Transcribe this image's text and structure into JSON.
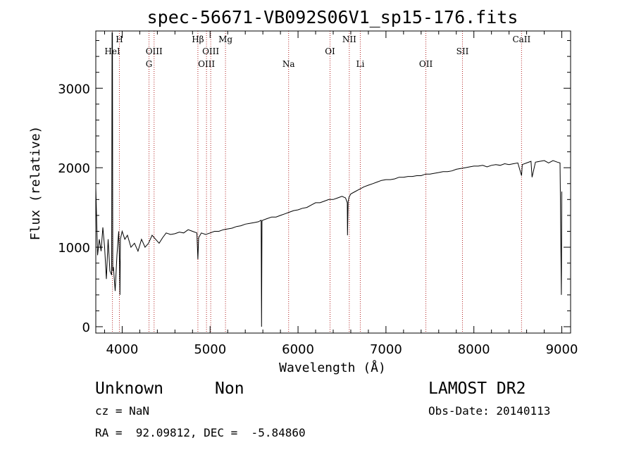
{
  "chart_data": {
    "type": "line",
    "title": "spec-56671-VB092S06V1_sp15-176.fits",
    "xlabel": "Wavelength (Å)",
    "ylabel": "Flux (relative)",
    "xlim": [
      3700,
      9100
    ],
    "ylim": [
      -80,
      3720
    ],
    "x_ticks": [
      4000,
      5000,
      6000,
      7000,
      8000,
      9000
    ],
    "y_ticks": [
      0,
      1000,
      2000,
      3000
    ],
    "grid": false,
    "series": [
      {
        "color": "#000000",
        "x": [
          3700,
          3720,
          3740,
          3760,
          3780,
          3800,
          3820,
          3840,
          3860,
          3880,
          3885,
          3889,
          3893,
          3900,
          3920,
          3940,
          3960,
          3970,
          3975,
          3980,
          4000,
          4030,
          4060,
          4100,
          4140,
          4180,
          4220,
          4260,
          4300,
          4340,
          4380,
          4420,
          4460,
          4500,
          4550,
          4600,
          4650,
          4700,
          4750,
          4800,
          4850,
          4861,
          4870,
          4900,
          4950,
          5000,
          5050,
          5100,
          5150,
          5200,
          5250,
          5300,
          5350,
          5400,
          5450,
          5500,
          5550,
          5580,
          5585,
          5590,
          5600,
          5650,
          5700,
          5750,
          5800,
          5850,
          5900,
          5950,
          6000,
          6050,
          6100,
          6150,
          6200,
          6250,
          6300,
          6350,
          6400,
          6450,
          6500,
          6540,
          6560,
          6563,
          6570,
          6580,
          6600,
          6650,
          6700,
          6750,
          6800,
          6850,
          6900,
          6950,
          7000,
          7050,
          7100,
          7150,
          7200,
          7250,
          7300,
          7350,
          7400,
          7450,
          7500,
          7550,
          7600,
          7650,
          7700,
          7750,
          7800,
          7850,
          7900,
          7950,
          8000,
          8050,
          8100,
          8150,
          8200,
          8250,
          8300,
          8350,
          8400,
          8450,
          8500,
          8542,
          8550,
          8600,
          8650,
          8662,
          8700,
          8750,
          8800,
          8850,
          8900,
          8950,
          8980,
          8995,
          9000
        ],
        "y": [
          1750,
          900,
          1100,
          950,
          1250,
          1000,
          600,
          1100,
          700,
          650,
          3700,
          3700,
          700,
          750,
          450,
          900,
          1200,
          800,
          400,
          1100,
          1200,
          1100,
          1150,
          1000,
          1050,
          950,
          1100,
          1000,
          1050,
          1150,
          1100,
          1050,
          1120,
          1180,
          1160,
          1170,
          1190,
          1180,
          1220,
          1200,
          1180,
          850,
          1120,
          1180,
          1160,
          1180,
          1200,
          1200,
          1220,
          1230,
          1240,
          1260,
          1270,
          1290,
          1300,
          1310,
          1320,
          1340,
          0,
          1330,
          1340,
          1360,
          1380,
          1380,
          1400,
          1420,
          1440,
          1460,
          1470,
          1490,
          1500,
          1530,
          1560,
          1560,
          1580,
          1600,
          1600,
          1620,
          1640,
          1620,
          1560,
          1150,
          1570,
          1630,
          1670,
          1700,
          1730,
          1760,
          1780,
          1800,
          1820,
          1840,
          1850,
          1850,
          1860,
          1880,
          1880,
          1890,
          1890,
          1900,
          1900,
          1920,
          1920,
          1930,
          1940,
          1950,
          1950,
          1960,
          1980,
          1990,
          2000,
          2010,
          2020,
          2020,
          2030,
          2010,
          2030,
          2040,
          2030,
          2050,
          2040,
          2050,
          2060,
          1900,
          2040,
          2060,
          2080,
          1880,
          2070,
          2080,
          2090,
          2060,
          2090,
          2070,
          2060,
          400,
          1700
        ]
      }
    ],
    "line_markers": [
      {
        "label": "HeI",
        "x": 3889,
        "row": 2
      },
      {
        "label": "H",
        "x": 3968,
        "row": 1
      },
      {
        "label": "OIII",
        "x": 4363,
        "row": 2
      },
      {
        "label": "G",
        "x": 4305,
        "row": 3
      },
      {
        "label": "Hβ",
        "x": 4861,
        "row": 1
      },
      {
        "label": "OIII",
        "x": 4959,
        "row": 3
      },
      {
        "label": "OIII",
        "x": 5007,
        "row": 2
      },
      {
        "label": "Mg",
        "x": 5175,
        "row": 1
      },
      {
        "label": "Na",
        "x": 5893,
        "row": 3
      },
      {
        "label": "OI",
        "x": 6364,
        "row": 2
      },
      {
        "label": "NII",
        "x": 6583,
        "row": 1
      },
      {
        "label": "Li",
        "x": 6708,
        "row": 3
      },
      {
        "label": "OII",
        "x": 7454,
        "row": 3
      },
      {
        "label": "SII",
        "x": 7870,
        "row": 2
      },
      {
        "label": "CaII",
        "x": 8542,
        "row": 1
      }
    ]
  },
  "info": {
    "object_class": "Unknown",
    "object_subclass": "Non",
    "survey": "LAMOST DR2",
    "cz": "cz = NaN",
    "obs_date": "Obs-Date: 20140113",
    "coords": "RA =  92.09812, DEC =  -5.84860"
  },
  "colors": {
    "marker_line": "#b22222",
    "spectrum": "#000000"
  }
}
